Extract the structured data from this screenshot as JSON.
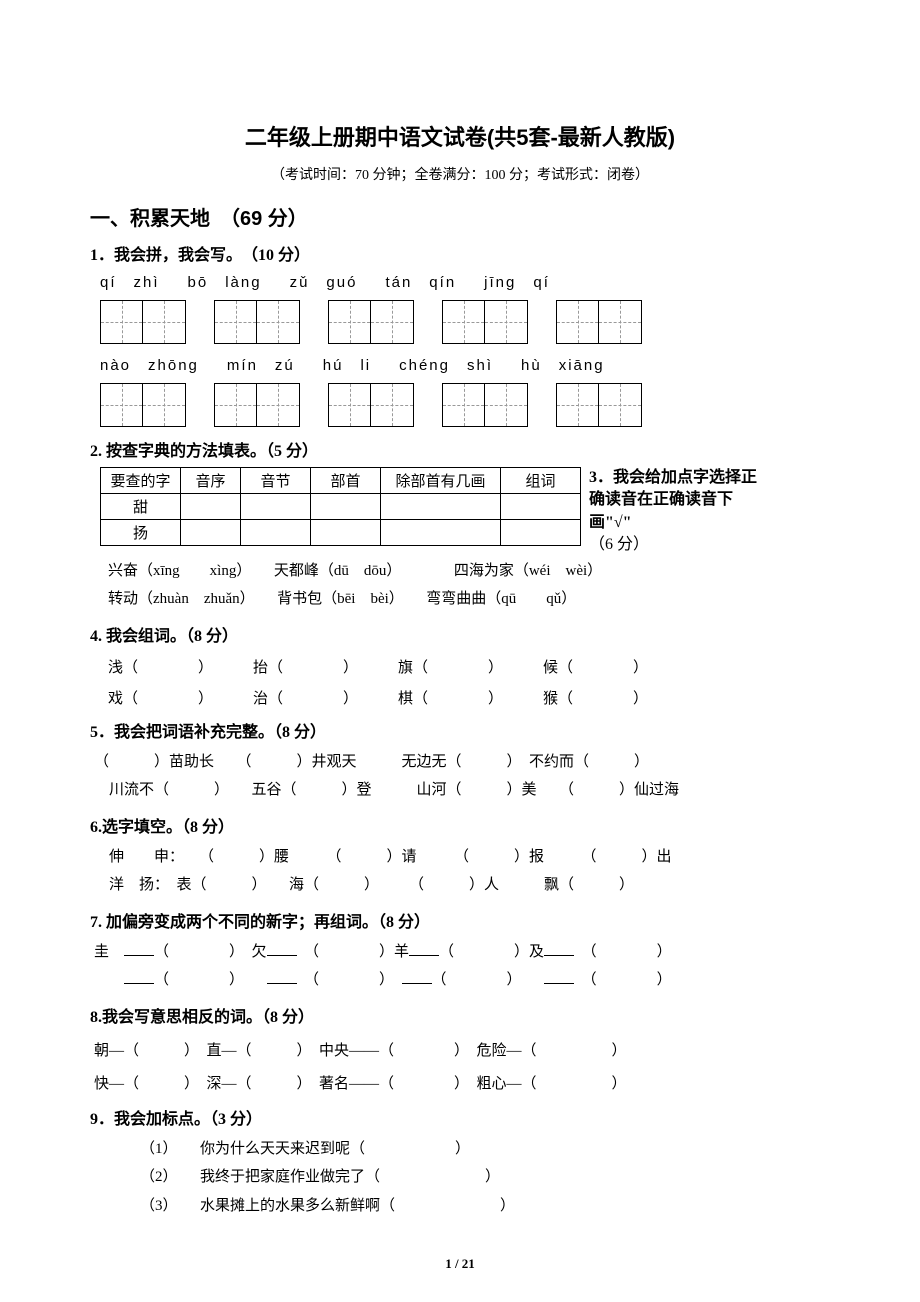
{
  "title": "二年级上册期中语文试卷(共5套-最新人教版)",
  "subtitle": "（考试时间：70 分钟；全卷满分：100 分；考试形式：闭卷）",
  "section1": {
    "heading": "一、积累天地　（69 分）"
  },
  "q1": {
    "title": "1．我会拼，我会写。　（10 分）",
    "row1": [
      {
        "pinyin": "qí　zhì"
      },
      {
        "pinyin": "bō　làng"
      },
      {
        "pinyin": "zǔ　guó"
      },
      {
        "pinyin": "tán　qín"
      },
      {
        "pinyin": "jīng　qí"
      }
    ],
    "row2": [
      {
        "pinyin": "nào　zhōng"
      },
      {
        "pinyin": "mín　zú"
      },
      {
        "pinyin": "hú　li"
      },
      {
        "pinyin": "chéng　shì"
      },
      {
        "pinyin": "hù　xiāng"
      }
    ]
  },
  "q2": {
    "title": "2. 按查字典的方法填表。（5 分）",
    "headers": [
      "要查的字",
      "音序",
      "音节",
      "部首",
      "除部首有几画",
      "组词"
    ],
    "rows": [
      [
        "甜",
        "",
        "",
        "",
        "",
        ""
      ],
      [
        "扬",
        "",
        "",
        "",
        "",
        ""
      ]
    ]
  },
  "q3": {
    "title": "3．我会给加点字选择正确读音在正确读音下画\"√\"",
    "points": "（6 分）",
    "line1": "兴奋（xīng　　xìng）　　天都峰（dū　dōu）　　　　四海为家（wéi　wèi）",
    "line2": "转动（zhuàn　zhuǎn）　　背书包（bēi　bèi）　　弯弯曲曲（qū　　qǔ）"
  },
  "q4": {
    "title": "4. 我会组词。（8 分）",
    "row1": [
      "浅（　　　　）",
      "抬（　　　　）",
      "旗（　　　　）",
      "候（　　　　）"
    ],
    "row2": [
      "戏（　　　　）",
      "治（　　　　）",
      "棋（　　　　）",
      "猴（　　　　）"
    ]
  },
  "q5": {
    "title": "5．我会把词语补充完整。（8 分）",
    "line1": "（　　　）苗助长　　（　　　）井观天　　　无边无（　　　）　不约而（　　　）",
    "line2": "　川流不（　　　）　　五谷（　　　）登　　　山河（　　　）美　　（　　　）仙过海"
  },
  "q6": {
    "title": "6.选字填空。（8 分）",
    "line1": "　伸　　申：　　（　　　）腰　　　（　　　）请　　　（　　　）报　　　（　　　）出",
    "line2": "　洋　扬：　表（　　　）　　海（　　　）　　　（　　　）人　　　飘（　　　）"
  },
  "q7": {
    "title": "7. 加偏旁变成两个不同的新字；再组词。（8 分）",
    "line1": "圭　___（　　　　）　欠___　（　　　　）羊___（　　　　）及___　（　　　　）",
    "line2": "　　___（　　　　）　　___　（　　　　）　___（　　　　）　　___　（　　　　）"
  },
  "q8": {
    "title": "8.我会写意思相反的词。（8 分）",
    "line1": "朝—（　　　）　直—（　　　）　中央——（　　　　）　危险—（　　　　　）",
    "line2": "快—（　　　）　深—（　　　）　著名——（　　　　）　粗心—（　　　　　）"
  },
  "q9": {
    "title": "9．我会加标点。（3 分）",
    "items": [
      "（1）　　你为什么天天来迟到呢（　　　　　　）",
      "（2）　　我终于把家庭作业做完了（　　　　　　　）",
      "（3）　　水果摊上的水果多么新鲜啊（　　　　　　　）"
    ]
  },
  "pageNum": "1 / 21",
  "colors": {
    "text": "#000000",
    "bg": "#ffffff",
    "dash": "#999999"
  }
}
